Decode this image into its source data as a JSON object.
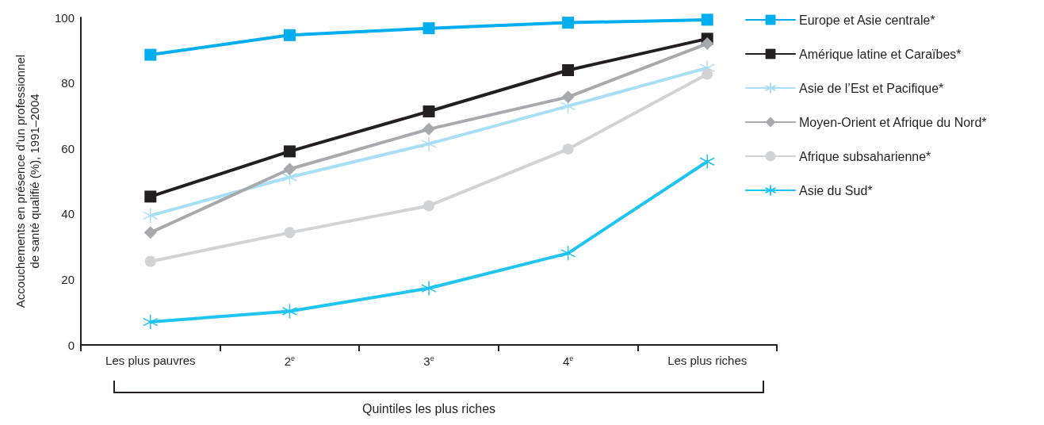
{
  "chart_data": {
    "type": "line",
    "xlabel": "Quintiles les plus riches",
    "ylabel": "Accouchements en présence d’un professionnel\nde santé qualifié (%), 1991–2004",
    "categories": [
      "Les plus pauvres",
      "2$^{e}$",
      "3$^{e}$",
      "4$^{e}$",
      "Les plus riches"
    ],
    "ylim": [
      0,
      100
    ],
    "yticks": [
      0,
      20,
      40,
      60,
      80,
      100
    ],
    "grid": false,
    "legend": "right",
    "line_style": "solid",
    "series": [
      {
        "name": "Europe et Asie centrale*",
        "color": "#00aeef",
        "marker": "square",
        "values": [
          88.6,
          94.6,
          96.7,
          98.4,
          99.3
        ]
      },
      {
        "name": "Amérique latine et Caraïbes*",
        "color": "#231f20",
        "marker": "square",
        "values": [
          45.3,
          59.1,
          71.3,
          83.9,
          93.5
        ]
      },
      {
        "name": "Asie de l’Est et Pacifique*",
        "color": "#a8dff7",
        "marker": "cross",
        "values": [
          39.5,
          51.2,
          61.4,
          72.9,
          84.6
        ]
      },
      {
        "name": "Moyen-Orient et Afrique du Nord*",
        "color": "#a7a9ac",
        "marker": "diamond",
        "values": [
          34.3,
          53.7,
          65.9,
          75.7,
          92.0
        ]
      },
      {
        "name": "Afrique subsaharienne*",
        "color": "#d1d3d4",
        "marker": "circle",
        "values": [
          25.5,
          34.3,
          42.5,
          59.8,
          82.7
        ]
      },
      {
        "name": "Asie du Sud*",
        "color": "#1fc4f0",
        "marker": "cross",
        "values": [
          7.0,
          10.3,
          17.3,
          28.0,
          56.0
        ]
      }
    ]
  }
}
